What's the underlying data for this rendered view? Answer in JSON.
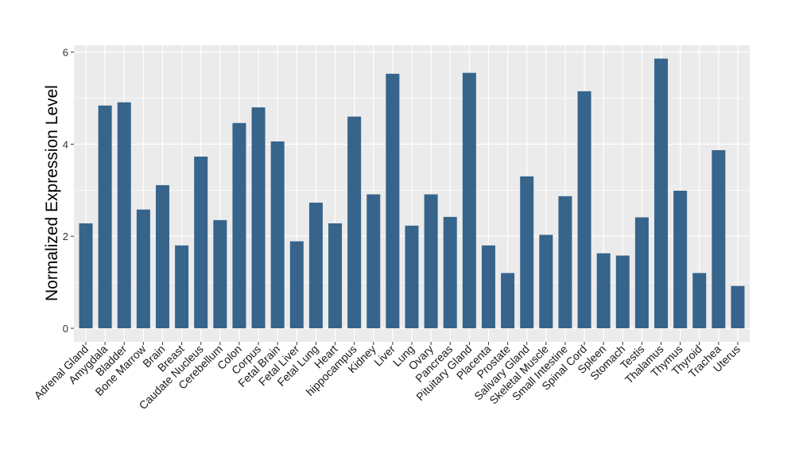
{
  "chart_data": {
    "type": "bar",
    "title": "",
    "xlabel": "",
    "ylabel": "Normalized Expression Level",
    "ylim": [
      -0.3,
      6.15
    ],
    "yticks": [
      0,
      2,
      4,
      6
    ],
    "grid": true,
    "bar_color": "#36648B",
    "panel_color": "#EBEBEB",
    "categories": [
      "Adrenal Gland",
      "Amygdala",
      "Bladder",
      "Bone Marrow",
      "Brain",
      "Breast",
      "Caudate Nucleus",
      "Cerebellum",
      "Colon",
      "Corpus",
      "Fetal Brain",
      "Fetal Liver",
      "Fetal Lung",
      "Heart",
      "hippocampus",
      "Kidney",
      "Liver",
      "Lung",
      "Ovary",
      "Pancreas",
      "Pituitary Gland",
      "Placenta",
      "Prostate",
      "Salivary Gland",
      "Skeletal Muscle",
      "Small Intestine",
      "Spinal Cord",
      "Spleen",
      "Stomach",
      "Testis",
      "Thalamus",
      "Thymus",
      "Thyroid",
      "Trachea",
      "Uterus"
    ],
    "values": [
      2.28,
      4.84,
      4.91,
      2.58,
      3.11,
      1.8,
      3.73,
      2.35,
      4.46,
      4.8,
      4.06,
      1.89,
      2.73,
      2.28,
      4.6,
      2.91,
      5.53,
      2.23,
      2.91,
      2.42,
      5.55,
      1.8,
      1.2,
      3.3,
      2.03,
      2.87,
      5.15,
      1.63,
      1.58,
      2.41,
      5.86,
      2.99,
      1.2,
      3.87,
      0.92
    ]
  }
}
